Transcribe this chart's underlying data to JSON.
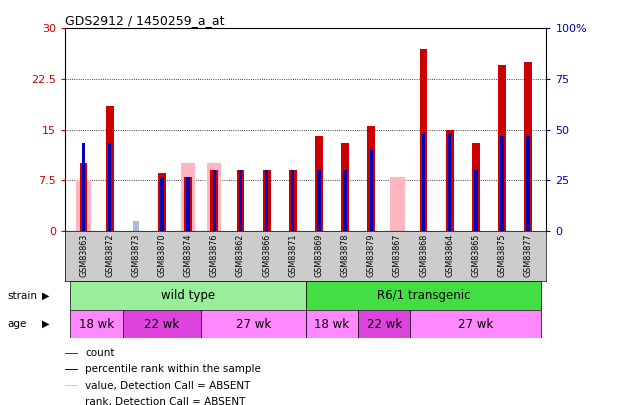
{
  "title": "GDS2912 / 1450259_a_at",
  "samples": [
    "GSM83863",
    "GSM83872",
    "GSM83873",
    "GSM83870",
    "GSM83874",
    "GSM83876",
    "GSM83862",
    "GSM83866",
    "GSM83871",
    "GSM83869",
    "GSM83878",
    "GSM83879",
    "GSM83867",
    "GSM83868",
    "GSM83864",
    "GSM83865",
    "GSM83875",
    "GSM83877"
  ],
  "count_values": [
    10.0,
    18.5,
    0.0,
    8.5,
    8.0,
    9.0,
    9.0,
    9.0,
    9.0,
    14.0,
    13.0,
    15.5,
    0.0,
    27.0,
    15.0,
    13.0,
    24.5,
    25.0
  ],
  "rank_values": [
    13.0,
    13.0,
    0.0,
    8.0,
    8.0,
    9.0,
    9.0,
    9.0,
    9.0,
    9.0,
    9.0,
    12.0,
    0.0,
    14.5,
    14.5,
    9.0,
    14.0,
    14.0
  ],
  "pink_values": [
    7.5,
    0.0,
    0.0,
    0.0,
    10.0,
    10.0,
    0.0,
    0.0,
    0.0,
    0.0,
    0.0,
    0.0,
    8.0,
    0.0,
    0.0,
    0.0,
    0.0,
    0.0
  ],
  "lightblue_values": [
    0.0,
    0.0,
    1.5,
    0.0,
    0.0,
    0.0,
    0.0,
    0.0,
    0.0,
    0.0,
    0.0,
    0.0,
    0.0,
    0.0,
    0.0,
    0.0,
    0.0,
    0.0
  ],
  "ylim_left": [
    0,
    30
  ],
  "ylim_right": [
    0,
    100
  ],
  "yticks_left": [
    0,
    7.5,
    15,
    22.5,
    30
  ],
  "yticks_right": [
    0,
    25,
    50,
    75,
    100
  ],
  "color_red": "#CC0000",
  "color_blue": "#0000BB",
  "color_pink": "#FFB6C1",
  "color_lightblue": "#AABBDD",
  "color_green_light": "#99EE99",
  "color_green_dark": "#44DD44",
  "strain_labels": [
    "wild type",
    "R6/1 transgenic"
  ],
  "age_spans": [
    {
      "label": "18 wk",
      "start": 0,
      "end": 2,
      "color": "#FF88FF"
    },
    {
      "label": "22 wk",
      "start": 2,
      "end": 5,
      "color": "#DD44DD"
    },
    {
      "label": "27 wk",
      "start": 5,
      "end": 9,
      "color": "#FF88FF"
    },
    {
      "label": "18 wk",
      "start": 9,
      "end": 11,
      "color": "#FF88FF"
    },
    {
      "label": "22 wk",
      "start": 11,
      "end": 13,
      "color": "#DD44DD"
    },
    {
      "label": "27 wk",
      "start": 13,
      "end": 18,
      "color": "#FF88FF"
    }
  ],
  "legend_items": [
    {
      "label": "count",
      "color": "#CC0000"
    },
    {
      "label": "percentile rank within the sample",
      "color": "#0000BB"
    },
    {
      "label": "value, Detection Call = ABSENT",
      "color": "#FFB6C1"
    },
    {
      "label": "rank, Detection Call = ABSENT",
      "color": "#AABBDD"
    }
  ]
}
